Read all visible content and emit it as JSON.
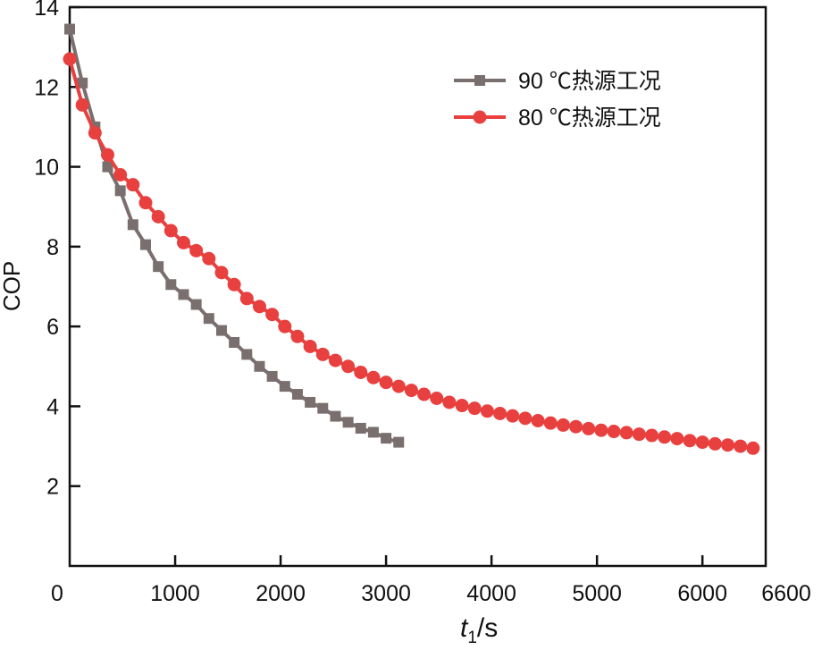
{
  "chart_data": {
    "type": "line",
    "title": "",
    "xlabel_italic": "t",
    "xlabel_sub": "1",
    "xlabel_unit": "/s",
    "ylabel": "COP",
    "xlim": [
      0,
      6600
    ],
    "ylim": [
      0,
      14
    ],
    "xticks": [
      0,
      1000,
      2000,
      3000,
      4000,
      5000,
      6000,
      6600
    ],
    "yticks": [
      2,
      4,
      6,
      8,
      10,
      12,
      14
    ],
    "grid": false,
    "legend_position": "top-right",
    "series": [
      {
        "name": "90 ℃热源工况",
        "color": "#7a6f6f",
        "marker": "square",
        "x_start": 0,
        "x_step": 120,
        "values": [
          13.45,
          12.1,
          11.0,
          10.0,
          9.4,
          8.55,
          8.05,
          7.5,
          7.05,
          6.8,
          6.55,
          6.2,
          5.9,
          5.6,
          5.3,
          5.0,
          4.75,
          4.5,
          4.3,
          4.1,
          3.95,
          3.75,
          3.6,
          3.45,
          3.35,
          3.2,
          3.1
        ]
      },
      {
        "name": "80 ℃热源工况",
        "color": "#e8403f",
        "marker": "circle",
        "x_start": 0,
        "x_step": 120,
        "values": [
          12.7,
          11.55,
          10.85,
          10.3,
          9.8,
          9.55,
          9.1,
          8.75,
          8.4,
          8.1,
          7.9,
          7.7,
          7.35,
          7.05,
          6.7,
          6.5,
          6.3,
          6.0,
          5.75,
          5.5,
          5.3,
          5.15,
          5.0,
          4.85,
          4.72,
          4.6,
          4.5,
          4.4,
          4.3,
          4.2,
          4.1,
          4.02,
          3.95,
          3.88,
          3.82,
          3.76,
          3.7,
          3.64,
          3.58,
          3.53,
          3.49,
          3.44,
          3.4,
          3.37,
          3.34,
          3.3,
          3.27,
          3.23,
          3.19,
          3.14,
          3.1,
          3.06,
          3.03,
          3.0,
          2.95
        ]
      }
    ]
  }
}
